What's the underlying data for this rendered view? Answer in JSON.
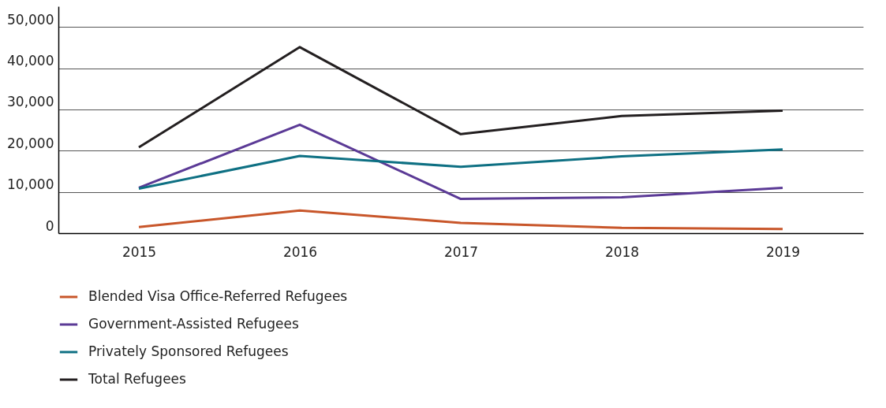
{
  "chart_data": {
    "type": "line",
    "categories": [
      "2015",
      "2016",
      "2017",
      "2018",
      "2019"
    ],
    "series": [
      {
        "name": "Blended Visa Office-Referred Refugees",
        "color": "#c8562a",
        "values": [
          1500,
          5500,
          2500,
          1300,
          1000
        ]
      },
      {
        "name": "Government-Assisted Refugees",
        "color": "#5b3a96",
        "values": [
          11000,
          26300,
          8300,
          8700,
          11000
        ]
      },
      {
        "name": "Privately Sponsored Refugees",
        "color": "#0e7083",
        "values": [
          10800,
          18700,
          16100,
          18600,
          20300
        ]
      },
      {
        "name": "Total Refugees",
        "color": "#231f20",
        "values": [
          20800,
          45100,
          24000,
          28400,
          29700
        ]
      }
    ],
    "ylim": [
      0,
      55000
    ],
    "yticks": [
      0,
      {
        "value": 10000,
        "label": "10,000"
      },
      {
        "value": 20000,
        "label": "20,000"
      },
      {
        "value": 30000,
        "label": "30,000"
      },
      {
        "value": 40000,
        "label": "40,000"
      },
      {
        "value": 50000,
        "label": "50,000"
      }
    ],
    "grid": "y",
    "legend": "bottom",
    "marker": "none",
    "line_style": "solid"
  }
}
